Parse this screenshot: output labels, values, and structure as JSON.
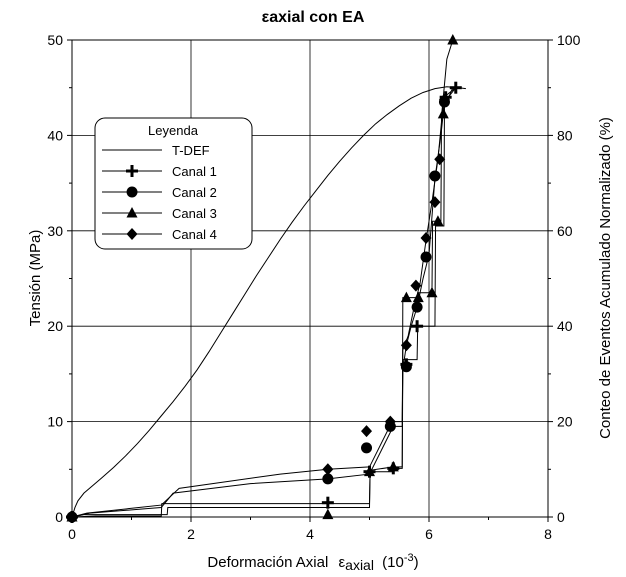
{
  "chart_data": {
    "type": "line",
    "title": "axial con EA",
    "xlabel": "Deformación Axial",
    "xlabel_sub": "axial",
    "xlabel_unit": "(10",
    "xlabel_exp": "-3",
    "xlabel_close": ")",
    "ylabel": "Tensión (MPa)",
    "y2label": "Conteo de Eventos Acumulado Normalizado (%)",
    "xlim": [
      0,
      8
    ],
    "ylim": [
      0,
      50
    ],
    "y2lim": [
      0,
      100
    ],
    "grid": true,
    "legend_title": "Leyenda",
    "legend_position": "left",
    "xticks": [
      "0",
      "2",
      "4",
      "6",
      "8"
    ],
    "yticks": [
      "0",
      "10",
      "20",
      "30",
      "40",
      "50"
    ],
    "y2ticks": [
      "0",
      "20",
      "40",
      "60",
      "80",
      "100"
    ],
    "series": [
      {
        "name": "T-DEF",
        "axis": "left",
        "marker": "none",
        "x": [
          0.0,
          0.05,
          0.1,
          0.2,
          0.35,
          0.5,
          0.7,
          0.9,
          1.1,
          1.3,
          1.5,
          1.7,
          1.9,
          2.1,
          2.3,
          2.5,
          2.7,
          2.9,
          3.1,
          3.3,
          3.5,
          3.7,
          3.9,
          4.1,
          4.3,
          4.5,
          4.7,
          4.9,
          5.1,
          5.3,
          5.5,
          5.7,
          5.9,
          6.1,
          6.3,
          6.5,
          6.62
        ],
        "y": [
          0.0,
          1.0,
          1.7,
          2.5,
          3.3,
          4.1,
          5.2,
          6.4,
          7.7,
          9.1,
          10.6,
          12.1,
          13.7,
          15.4,
          17.3,
          19.3,
          21.3,
          23.3,
          25.3,
          27.2,
          29.1,
          30.9,
          32.6,
          34.2,
          35.8,
          37.3,
          38.7,
          40.0,
          41.2,
          42.2,
          43.1,
          43.9,
          44.5,
          44.9,
          45.1,
          45.0,
          44.9
        ]
      },
      {
        "name": "Canal 1",
        "axis": "right",
        "marker": "plus",
        "x": [
          0.0,
          0.4,
          1.5,
          1.51,
          4.3,
          5.0,
          5.01,
          5.4,
          5.41,
          5.55,
          5.56,
          5.8,
          5.81,
          6.1,
          6.11,
          6.25,
          6.26,
          6.4,
          6.45
        ],
        "y": [
          0.0,
          0.2,
          0.2,
          2.8,
          2.8,
          2.8,
          9.5,
          9.5,
          10.2,
          10.2,
          33.0,
          33.0,
          40.0,
          40.0,
          61.0,
          61.0,
          86.0,
          90.0,
          90.0
        ],
        "markers_x": [
          0.0,
          4.3,
          5.0,
          5.4,
          5.62,
          5.8,
          6.28,
          6.45
        ],
        "markers_y": [
          0.0,
          3.0,
          9.5,
          10.2,
          32.0,
          40.0,
          88.0,
          90.0
        ]
      },
      {
        "name": "Canal 2",
        "axis": "right",
        "marker": "circle",
        "x": [
          0.0,
          0.3,
          1.5,
          1.7,
          3.0,
          4.3,
          5.0,
          5.2,
          5.4,
          5.55,
          5.56,
          5.62,
          5.7,
          5.8,
          5.9,
          6.0,
          6.1,
          6.2,
          6.26,
          6.45
        ],
        "y": [
          0.0,
          0.8,
          2.0,
          5.0,
          7.0,
          8.0,
          9.0,
          14.0,
          19.0,
          19.0,
          31.0,
          36.0,
          40.0,
          44.0,
          50.0,
          55.0,
          71.0,
          80.0,
          87.0,
          90.0
        ],
        "markers_x": [
          0.0,
          4.3,
          4.95,
          5.35,
          5.62,
          5.8,
          5.95,
          6.1,
          6.26
        ],
        "markers_y": [
          0.0,
          8.0,
          14.5,
          19.0,
          31.5,
          44.0,
          54.5,
          71.5,
          87.0
        ]
      },
      {
        "name": "Canal 3",
        "axis": "right",
        "marker": "triangle",
        "x": [
          0.0,
          0.2,
          1.6,
          1.61,
          4.3,
          5.0,
          5.01,
          5.4,
          5.55,
          5.56,
          5.8,
          5.81,
          6.05,
          6.06,
          6.2,
          6.21,
          6.3,
          6.4
        ],
        "y": [
          0.0,
          0.5,
          0.5,
          2.0,
          2.0,
          2.0,
          9.8,
          10.5,
          10.5,
          46.0,
          46.0,
          47.0,
          47.0,
          62.0,
          62.0,
          84.0,
          96.0,
          100.0
        ],
        "markers_x": [
          0.0,
          4.3,
          5.0,
          5.4,
          5.62,
          5.82,
          6.05,
          6.15,
          6.24,
          6.4
        ],
        "markers_y": [
          0.0,
          0.5,
          9.5,
          10.5,
          46.0,
          46.0,
          47.0,
          62.0,
          84.5,
          100.0
        ]
      },
      {
        "name": "Canal 4",
        "axis": "right",
        "marker": "diamond",
        "x": [
          0.0,
          0.25,
          1.5,
          1.8,
          3.5,
          4.3,
          5.0,
          5.3,
          5.4,
          5.55,
          5.56,
          5.65,
          5.75,
          5.85,
          5.95,
          6.05,
          6.15,
          6.25,
          6.45
        ],
        "y": [
          0.0,
          0.8,
          2.5,
          6.0,
          9.0,
          10.0,
          10.5,
          18.0,
          20.0,
          20.0,
          35.0,
          38.0,
          44.0,
          49.0,
          58.0,
          66.0,
          75.0,
          88.0,
          90.0
        ],
        "markers_x": [
          0.0,
          4.3,
          4.95,
          5.35,
          5.62,
          5.78,
          5.95,
          6.1,
          6.18,
          6.26
        ],
        "markers_y": [
          0.0,
          10.0,
          18.0,
          20.0,
          36.0,
          48.5,
          58.5,
          66.0,
          75.0,
          87.5
        ]
      }
    ]
  }
}
